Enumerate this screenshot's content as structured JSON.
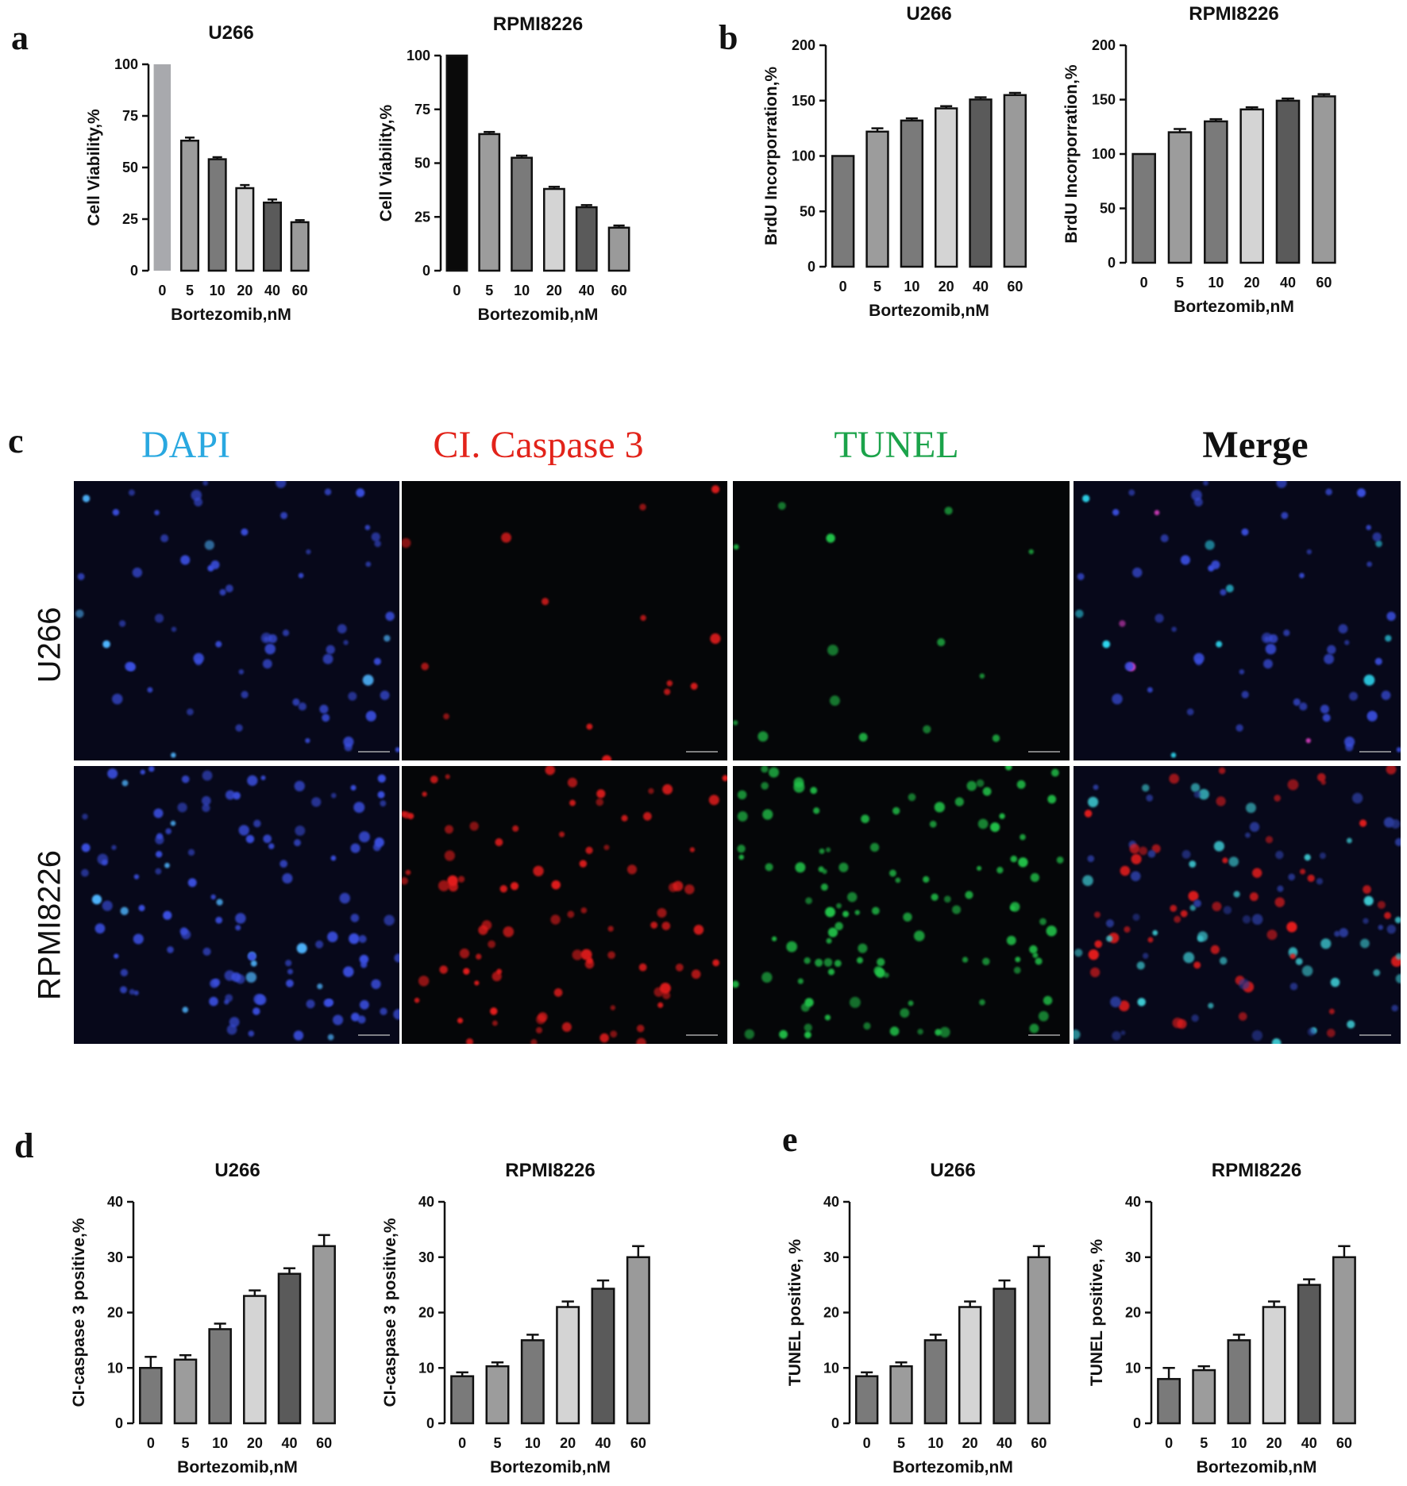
{
  "panels": {
    "a": "a",
    "b": "b",
    "c": "c",
    "d": "d",
    "e": "e"
  },
  "microscopy": {
    "columns": [
      {
        "label": "DAPI",
        "color": "#29a8e0"
      },
      {
        "label": "CI. Caspase 3",
        "color": "#e2231a"
      },
      {
        "label": "TUNEL",
        "color": "#1ba34a"
      },
      {
        "label": "Merge",
        "color": "#111111"
      }
    ],
    "rows": [
      "U266",
      "RPMI8226"
    ]
  },
  "chart_data": [
    {
      "id": "a1",
      "type": "bar",
      "title": "U266",
      "xlabel": "Bortezomib,nM",
      "ylabel": "Cell Viability,%",
      "categories": [
        "0",
        "5",
        "10",
        "20",
        "40",
        "60"
      ],
      "values": [
        100,
        63,
        54,
        40,
        33,
        23.5
      ],
      "errors": [
        0,
        1.5,
        1,
        1.5,
        1.5,
        1
      ],
      "ylim": [
        0,
        100
      ],
      "yticks": [
        0,
        25,
        50,
        75,
        100
      ],
      "colors": [
        "#a8a9ad",
        "#9c9c9c",
        "#7a7a7a",
        "#d4d4d4",
        "#5a5a5a",
        "#9a9a9a"
      ]
    },
    {
      "id": "a2",
      "type": "bar",
      "title": "RPMI8226",
      "xlabel": "Bortezomib,nM",
      "ylabel": "Cell Viability,%",
      "categories": [
        "0",
        "5",
        "10",
        "20",
        "40",
        "60"
      ],
      "values": [
        100,
        63.5,
        52.5,
        38,
        29.5,
        20
      ],
      "errors": [
        0,
        1,
        1,
        1,
        1,
        1
      ],
      "ylim": [
        0,
        100
      ],
      "yticks": [
        0,
        25,
        50,
        75,
        100
      ],
      "colors": [
        "#0a0a0a",
        "#9c9c9c",
        "#7a7a7a",
        "#d4d4d4",
        "#5a5a5a",
        "#9a9a9a"
      ]
    },
    {
      "id": "b1",
      "type": "bar",
      "title": "U266",
      "xlabel": "Bortezomib,nM",
      "ylabel": "BrdU Incorporration,%",
      "categories": [
        "0",
        "5",
        "10",
        "20",
        "40",
        "60"
      ],
      "values": [
        100,
        122,
        132,
        143,
        151,
        155
      ],
      "errors": [
        0,
        3,
        2,
        2,
        2,
        2
      ],
      "ylim": [
        0,
        200
      ],
      "yticks": [
        0,
        50,
        100,
        150,
        200
      ],
      "colors": [
        "#7a7a7a",
        "#9c9c9c",
        "#7a7a7a",
        "#d4d4d4",
        "#5a5a5a",
        "#9a9a9a"
      ]
    },
    {
      "id": "b2",
      "type": "bar",
      "title": "RPMI8226",
      "xlabel": "Bortezomib,nM",
      "ylabel": "BrdU Incorporration,%",
      "categories": [
        "0",
        "5",
        "10",
        "20",
        "40",
        "60"
      ],
      "values": [
        100,
        120,
        130,
        141,
        149,
        153
      ],
      "errors": [
        0,
        3,
        2,
        2,
        2,
        2
      ],
      "ylim": [
        0,
        200
      ],
      "yticks": [
        0,
        50,
        100,
        150,
        200
      ],
      "colors": [
        "#7a7a7a",
        "#9c9c9c",
        "#7a7a7a",
        "#d4d4d4",
        "#5a5a5a",
        "#9a9a9a"
      ]
    },
    {
      "id": "d1",
      "type": "bar",
      "title": "U266",
      "xlabel": "Bortezomib,nM",
      "ylabel": "CI-caspase 3 positive,%",
      "categories": [
        "0",
        "5",
        "10",
        "20",
        "40",
        "60"
      ],
      "values": [
        10,
        11.5,
        17,
        23,
        27,
        32
      ],
      "errors": [
        2,
        0.8,
        1,
        1,
        1,
        2
      ],
      "ylim": [
        0,
        40
      ],
      "yticks": [
        0,
        10,
        20,
        30,
        40
      ],
      "colors": [
        "#7a7a7a",
        "#9c9c9c",
        "#7a7a7a",
        "#d4d4d4",
        "#5a5a5a",
        "#9a9a9a"
      ]
    },
    {
      "id": "d2",
      "type": "bar",
      "title": "RPMI8226",
      "xlabel": "Bortezomib,nM",
      "ylabel": "CI-caspase 3 positive,%",
      "categories": [
        "0",
        "5",
        "10",
        "20",
        "40",
        "60"
      ],
      "values": [
        8.5,
        10.3,
        15,
        21,
        24.3,
        30
      ],
      "errors": [
        0.7,
        0.7,
        1,
        1,
        1.5,
        2
      ],
      "ylim": [
        0,
        40
      ],
      "yticks": [
        0,
        10,
        20,
        30,
        40
      ],
      "colors": [
        "#7a7a7a",
        "#9c9c9c",
        "#7a7a7a",
        "#d4d4d4",
        "#5a5a5a",
        "#9a9a9a"
      ]
    },
    {
      "id": "e1",
      "type": "bar",
      "title": "U266",
      "xlabel": "Bortezomib,nM",
      "ylabel": "TUNEL positive, %",
      "categories": [
        "0",
        "5",
        "10",
        "20",
        "40",
        "60"
      ],
      "values": [
        8.5,
        10.3,
        15,
        21,
        24.3,
        30
      ],
      "errors": [
        0.7,
        0.7,
        1,
        1,
        1.5,
        2
      ],
      "ylim": [
        0,
        40
      ],
      "yticks": [
        0,
        10,
        20,
        30,
        40
      ],
      "colors": [
        "#7a7a7a",
        "#9c9c9c",
        "#7a7a7a",
        "#d4d4d4",
        "#5a5a5a",
        "#9a9a9a"
      ]
    },
    {
      "id": "e2",
      "type": "bar",
      "title": "RPMI8226",
      "xlabel": "Bortezomib,nM",
      "ylabel": "TUNEL positive, %",
      "categories": [
        "0",
        "5",
        "10",
        "20",
        "40",
        "60"
      ],
      "values": [
        8,
        9.6,
        15,
        21,
        25,
        30
      ],
      "errors": [
        2,
        0.7,
        1,
        1,
        1,
        2
      ],
      "ylim": [
        0,
        40
      ],
      "yticks": [
        0,
        10,
        20,
        30,
        40
      ],
      "colors": [
        "#7a7a7a",
        "#9c9c9c",
        "#7a7a7a",
        "#d4d4d4",
        "#5a5a5a",
        "#9a9a9a"
      ]
    }
  ]
}
